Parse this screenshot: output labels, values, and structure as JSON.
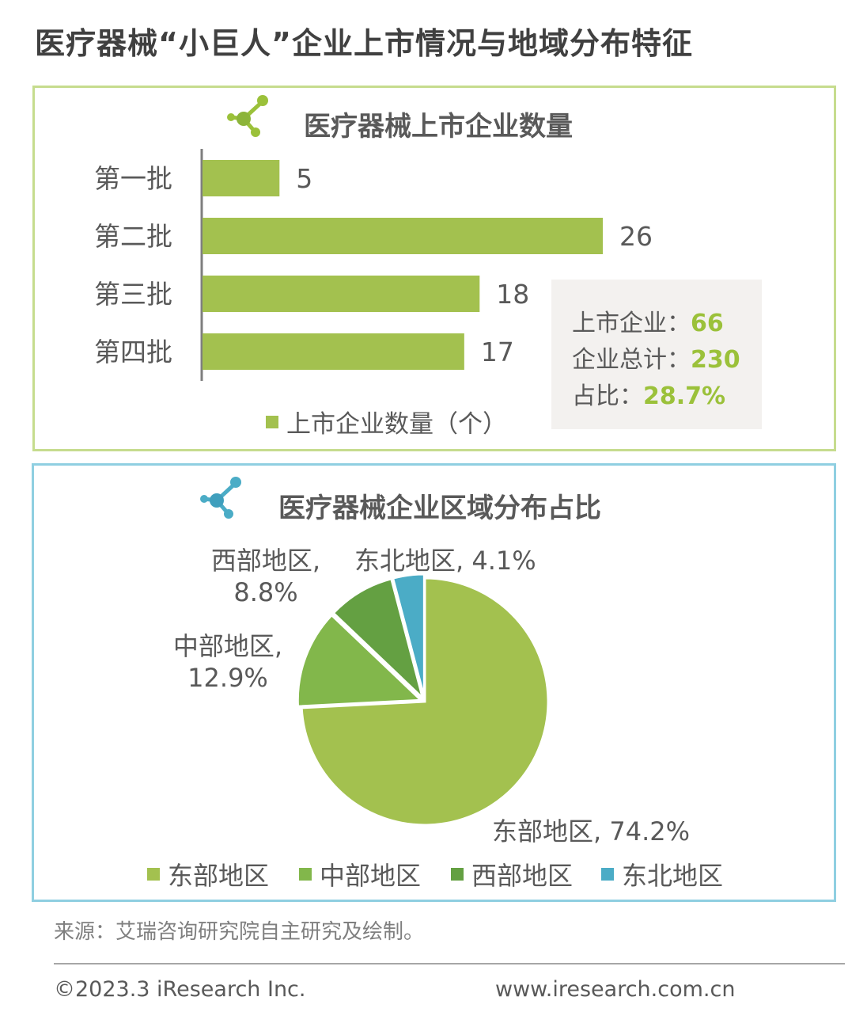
{
  "title": "医疗器械“小巨人”企业上市情况与地域分布特征",
  "colors": {
    "bar": "#a3c14f",
    "east": "#a3c14f",
    "central": "#82b74b",
    "west": "#64a042",
    "northeast": "#4bacc6",
    "bar_panel_border": "#c6dc8e",
    "pie_panel_border": "#8fcfe1"
  },
  "bar_panel": {
    "title": "医疗器械上市企业数量",
    "icon": "molecule-icon",
    "legend": "上市企业数量（个）",
    "summary": {
      "listed_label": "上市企业：",
      "listed_value": "66",
      "total_label": "企业总计：",
      "total_value": "230",
      "ratio_label": "占比：",
      "ratio_value": "28.7%"
    }
  },
  "pie_panel": {
    "title": "医疗器械企业区域分布占比",
    "icon": "molecule-icon"
  },
  "chart_data": [
    {
      "type": "bar",
      "orientation": "horizontal",
      "categories": [
        "第一批",
        "第二批",
        "第三批",
        "第四批"
      ],
      "values": [
        5,
        26,
        18,
        17
      ],
      "data_labels": [
        "5",
        "26",
        "18",
        "17"
      ],
      "series": [
        {
          "name": "上市企业数量（个）",
          "values": [
            5,
            26,
            18,
            17
          ]
        }
      ],
      "xlim": [
        0,
        26
      ],
      "grid": false,
      "legend_position": "bottom"
    },
    {
      "type": "pie",
      "categories": [
        "东部地区",
        "中部地区",
        "西部地区",
        "东北地区"
      ],
      "values": [
        74.2,
        12.9,
        8.8,
        4.1
      ],
      "labels": [
        {
          "name": "东部地区",
          "value": "74.2%"
        },
        {
          "name": "中部地区",
          "value": "12.9%"
        },
        {
          "name": "西部地区",
          "value": "8.8%"
        },
        {
          "name": "东北地区",
          "value": "4.1%"
        }
      ],
      "legend_position": "bottom"
    }
  ],
  "source": "来源：艾瑞咨询研究院自主研究及绘制。",
  "footer": {
    "copyright": "©2023.3 iResearch Inc.",
    "website": "www.iresearch.com.cn"
  }
}
